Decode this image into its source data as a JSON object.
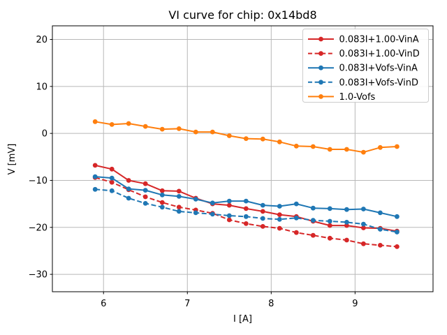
{
  "figure": {
    "background": "#ffffff"
  },
  "chart_data": {
    "type": "line",
    "title": "VI curve for chip: 0x14bd8",
    "xlabel": "I [A]",
    "ylabel": "V [mV]",
    "xlim": [
      5.39,
      9.93
    ],
    "ylim": [
      -33.7,
      22.9
    ],
    "x_ticks": [
      6,
      7,
      8,
      9
    ],
    "x_tick_labels": [
      "6",
      "7",
      "8",
      "9"
    ],
    "y_ticks": [
      20,
      10,
      0,
      -10,
      -20,
      -30
    ],
    "y_tick_labels": [
      "20",
      "10",
      "0",
      "−10",
      "−20",
      "−30"
    ],
    "grid": true,
    "grid_color": "#b8b8b8",
    "spine_color": "#000000",
    "legend_position": "upper right",
    "x": [
      5.9,
      6.1,
      6.3,
      6.5,
      6.7,
      6.9,
      7.1,
      7.3,
      7.5,
      7.7,
      7.9,
      8.1,
      8.3,
      8.5,
      8.7,
      8.9,
      9.1,
      9.3,
      9.5
    ],
    "series": [
      {
        "name": "0.083I+1.00-VinA",
        "color": "#d62728",
        "style": "solid",
        "marker": "circle",
        "values": [
          -6.8,
          -7.6,
          -10.0,
          -10.7,
          -12.2,
          -12.3,
          -13.8,
          -15.0,
          -15.3,
          -16.0,
          -16.6,
          -17.3,
          -17.7,
          -18.7,
          -19.6,
          -19.6,
          -20.1,
          -20.2,
          -20.8
        ]
      },
      {
        "name": "0.083I+1.00-VinD",
        "color": "#d62728",
        "style": "dashed",
        "marker": "circle",
        "values": [
          -9.4,
          -10.4,
          -12.0,
          -13.5,
          -14.7,
          -15.7,
          -16.3,
          -17.0,
          -18.4,
          -19.2,
          -19.8,
          -20.2,
          -21.1,
          -21.7,
          -22.3,
          -22.7,
          -23.5,
          -23.8,
          -24.1
        ]
      },
      {
        "name": "0.083I+Vofs-VinA",
        "color": "#1f77b4",
        "style": "solid",
        "marker": "circle",
        "values": [
          -9.2,
          -9.5,
          -11.8,
          -12.1,
          -13.1,
          -13.4,
          -14.0,
          -14.8,
          -14.4,
          -14.4,
          -15.3,
          -15.5,
          -15.0,
          -15.9,
          -16.0,
          -16.2,
          -16.1,
          -16.9,
          -17.7
        ]
      },
      {
        "name": "0.083I+Vofs-VinD",
        "color": "#1f77b4",
        "style": "dashed",
        "marker": "circle",
        "values": [
          -11.9,
          -12.2,
          -13.8,
          -14.9,
          -15.7,
          -16.6,
          -16.9,
          -17.2,
          -17.5,
          -17.7,
          -18.1,
          -18.3,
          -18.0,
          -18.5,
          -18.7,
          -18.9,
          -19.3,
          -20.4,
          -21.0
        ]
      },
      {
        "name": "1.0-Vofs",
        "color": "#ff7f0e",
        "style": "solid",
        "marker": "circle",
        "values": [
          2.5,
          1.9,
          2.1,
          1.5,
          0.9,
          1.0,
          0.3,
          0.3,
          -0.5,
          -1.1,
          -1.2,
          -1.8,
          -2.7,
          -2.8,
          -3.4,
          -3.4,
          -4.0,
          -3.0,
          -2.8
        ]
      }
    ]
  }
}
